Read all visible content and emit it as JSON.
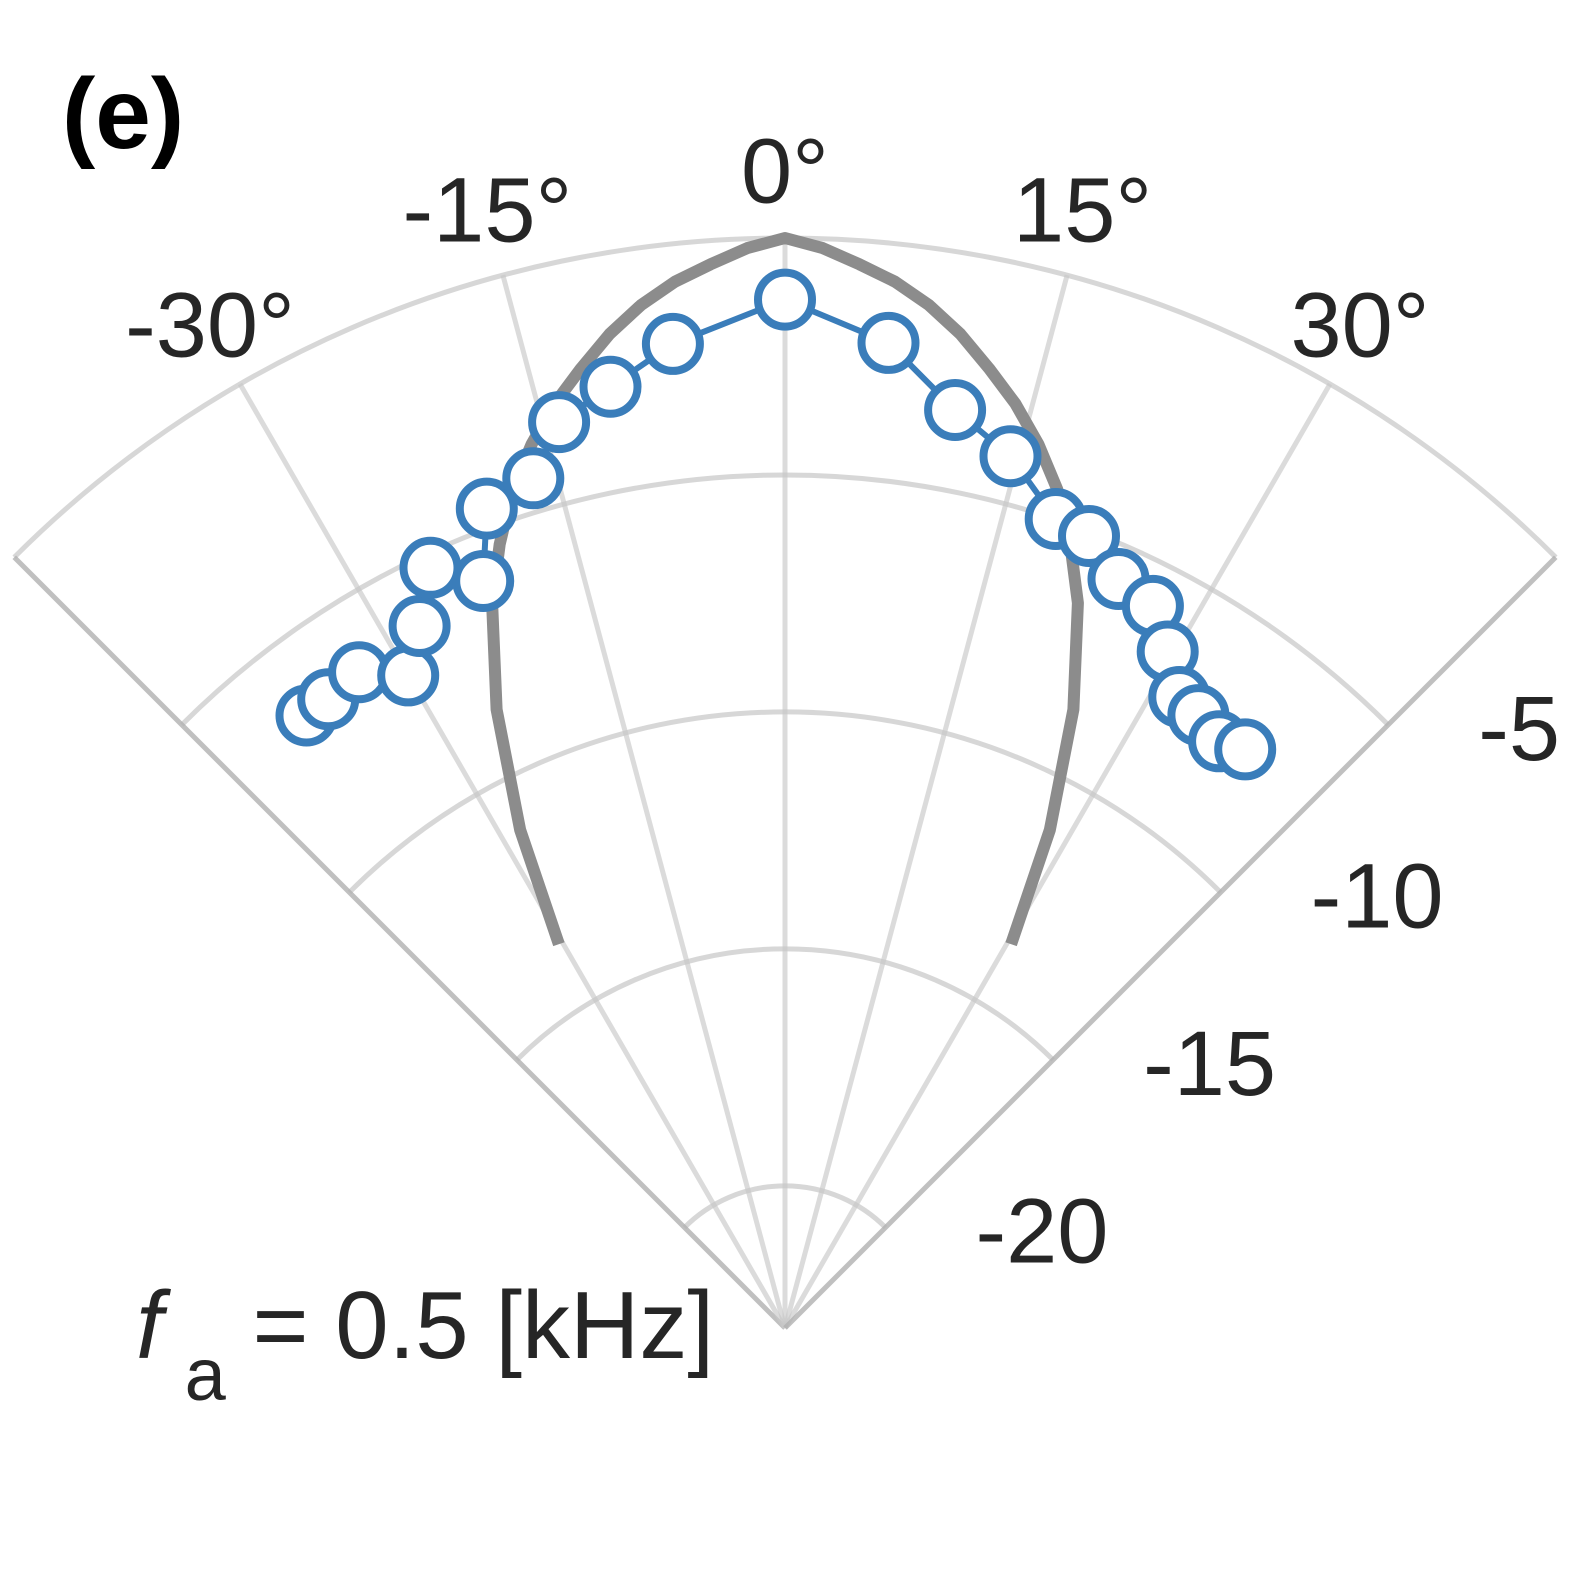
{
  "chart_data": {
    "type": "scatter",
    "panel_label": "(e)",
    "annotation": {
      "symbol": "f",
      "subscript": "a",
      "text": " = 0.5 [kHz]"
    },
    "theta_ticks": [
      "-30°",
      "-15°",
      "0°",
      "15°",
      "30°"
    ],
    "theta_tick_values": [
      -30,
      -15,
      0,
      15,
      30
    ],
    "theta_grid": [
      -45,
      -30,
      -15,
      0,
      15,
      30,
      45
    ],
    "theta_range": [
      -45,
      45
    ],
    "r_ticks": [
      "-5",
      "-10",
      "-15",
      "-20"
    ],
    "r_tick_values": [
      -5,
      -10,
      -15,
      -20
    ],
    "r_range": [
      -23,
      0
    ],
    "grid": true,
    "series": [
      {
        "kind": "model-curve",
        "color": "#8c8c8c",
        "theta": [
          -30.5,
          -28,
          -25,
          -22,
          -20,
          -18,
          -16,
          -14,
          -12,
          -10,
          -8,
          -6,
          -4,
          -2,
          0,
          2,
          4,
          6,
          8,
          10,
          12,
          14,
          16,
          18,
          20,
          22,
          25,
          28,
          30.5
        ],
        "r": [
          -13.6,
          -11.1,
          -8.6,
          -6.5,
          -5.4,
          -4.4,
          -3.6,
          -2.9,
          -2.3,
          -1.7,
          -1.2,
          -0.8,
          -0.5,
          -0.2,
          0.0,
          -0.2,
          -0.5,
          -0.8,
          -1.2,
          -1.7,
          -2.3,
          -2.9,
          -3.6,
          -4.4,
          -5.4,
          -6.5,
          -8.6,
          -11.1,
          -13.6
        ]
      },
      {
        "kind": "measured",
        "color": "#3a7dba",
        "marker": "open-circle",
        "theta": [
          -38,
          -36,
          -33,
          -30,
          -27.5,
          -25,
          -22,
          -20,
          -16.5,
          -14,
          -10.5,
          -6.5,
          0,
          6,
          10.5,
          14.5,
          18.5,
          21,
          24,
          27,
          29.5,
          32,
          34,
          36.5,
          38.5
        ],
        "r": [
          -6.6,
          -6.6,
          -6.5,
          -7.1,
          -6.3,
          -5.3,
          -6.0,
          -4.6,
          -4.3,
          -3.3,
          -2.8,
          -2.1,
          -1.3,
          -2.1,
          -3.3,
          -4.0,
          -5.0,
          -5.1,
          -5.7,
          -5.9,
          -6.6,
          -7.3,
          -7.4,
          -7.6,
          -7.4
        ]
      }
    ]
  }
}
